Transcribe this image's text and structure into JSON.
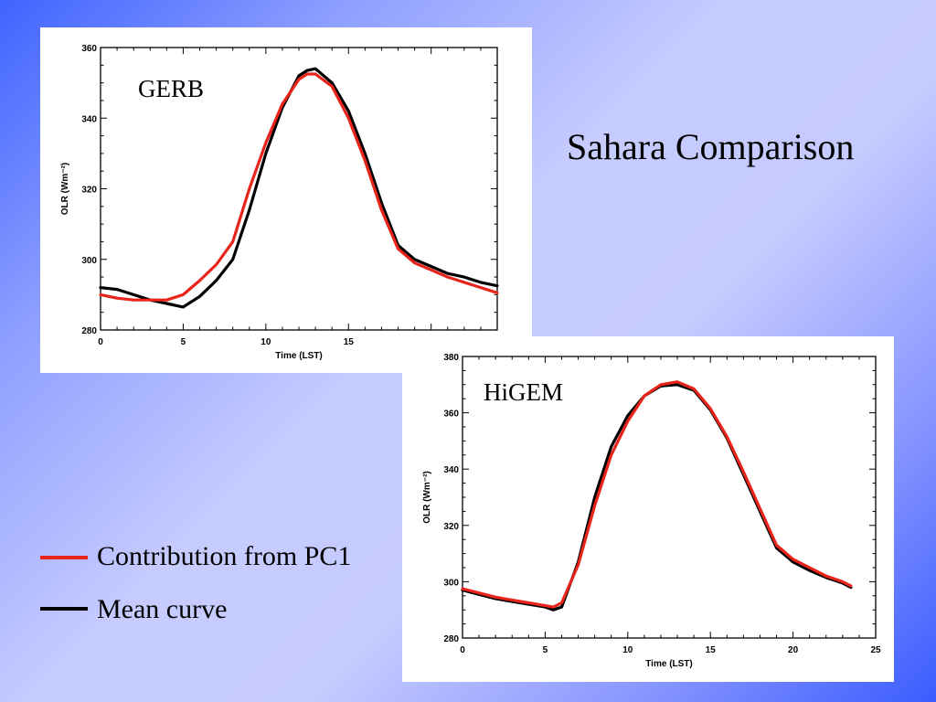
{
  "slide": {
    "title": "Sahara Comparison"
  },
  "legend": [
    {
      "label": "Contribution from PC1",
      "color": "#e8241b"
    },
    {
      "label": "Mean curve",
      "color": "#000000"
    }
  ],
  "chart_data": [
    {
      "type": "line",
      "title": "GERB",
      "xlabel": "Time (LST)",
      "ylabel": "OLR (Wm⁻²)",
      "xlim": [
        0,
        24
      ],
      "ylim": [
        280,
        360
      ],
      "xticks": [
        0,
        5,
        10,
        15
      ],
      "yticks": [
        280,
        300,
        320,
        340,
        360
      ],
      "series": [
        {
          "color": "#000000",
          "x": [
            0,
            1,
            2,
            3,
            4,
            5,
            6,
            7,
            8,
            9,
            10,
            11,
            12,
            12.5,
            13,
            14,
            15,
            16,
            17,
            18,
            19,
            20,
            21,
            22,
            23,
            24
          ],
          "y": [
            292,
            291.5,
            290,
            288.5,
            287.5,
            286.5,
            289.5,
            294,
            300,
            314,
            330,
            343,
            352,
            353.5,
            354,
            350,
            342,
            330,
            316,
            304,
            300,
            298,
            296,
            295,
            293.5,
            292.5
          ]
        },
        {
          "color": "#e8241b",
          "x": [
            0,
            1,
            2,
            3,
            4,
            5,
            6,
            7,
            8,
            9,
            10,
            11,
            12,
            12.5,
            13,
            14,
            15,
            16,
            17,
            18,
            19,
            20,
            21,
            22,
            23,
            24
          ],
          "y": [
            290,
            289,
            288.5,
            288.5,
            288.5,
            290,
            294,
            298.5,
            305,
            320,
            333,
            344,
            351,
            352.5,
            352.5,
            349,
            340,
            328,
            314,
            303,
            299,
            297,
            295,
            293.5,
            292,
            290.5
          ]
        }
      ]
    },
    {
      "type": "line",
      "title": "HiGEM",
      "xlabel": "Time (LST)",
      "ylabel": "OLR (Wm⁻²)",
      "xlim": [
        0,
        25
      ],
      "ylim": [
        280,
        380
      ],
      "xticks": [
        0,
        5,
        10,
        15,
        20,
        25
      ],
      "yticks": [
        280,
        300,
        320,
        340,
        360,
        380
      ],
      "series": [
        {
          "color": "#000000",
          "x": [
            0,
            1,
            2,
            3,
            4,
            5,
            5.5,
            6,
            7,
            8,
            9,
            10,
            11,
            12,
            13,
            14,
            15,
            16,
            17,
            18,
            19,
            20,
            21,
            22,
            23,
            23.5
          ],
          "y": [
            297,
            295.5,
            294,
            293,
            292,
            291,
            290,
            291,
            307,
            330,
            348,
            359,
            366,
            369.5,
            370,
            368,
            361,
            351,
            338,
            325,
            312,
            307,
            304,
            301.5,
            299.5,
            298
          ]
        },
        {
          "color": "#e8241b",
          "x": [
            0,
            1,
            2,
            3,
            4,
            5,
            5.5,
            6,
            7,
            8,
            9,
            10,
            11,
            12,
            13,
            14,
            15,
            16,
            17,
            18,
            19,
            20,
            21,
            22,
            23,
            23.5
          ],
          "y": [
            297.5,
            296,
            294.5,
            293.5,
            292.5,
            291.5,
            291,
            292.5,
            306,
            327,
            345,
            357,
            366,
            370,
            371,
            368.5,
            361.5,
            351.5,
            339,
            326,
            313,
            308,
            305,
            302,
            300,
            298.5
          ]
        }
      ]
    }
  ]
}
